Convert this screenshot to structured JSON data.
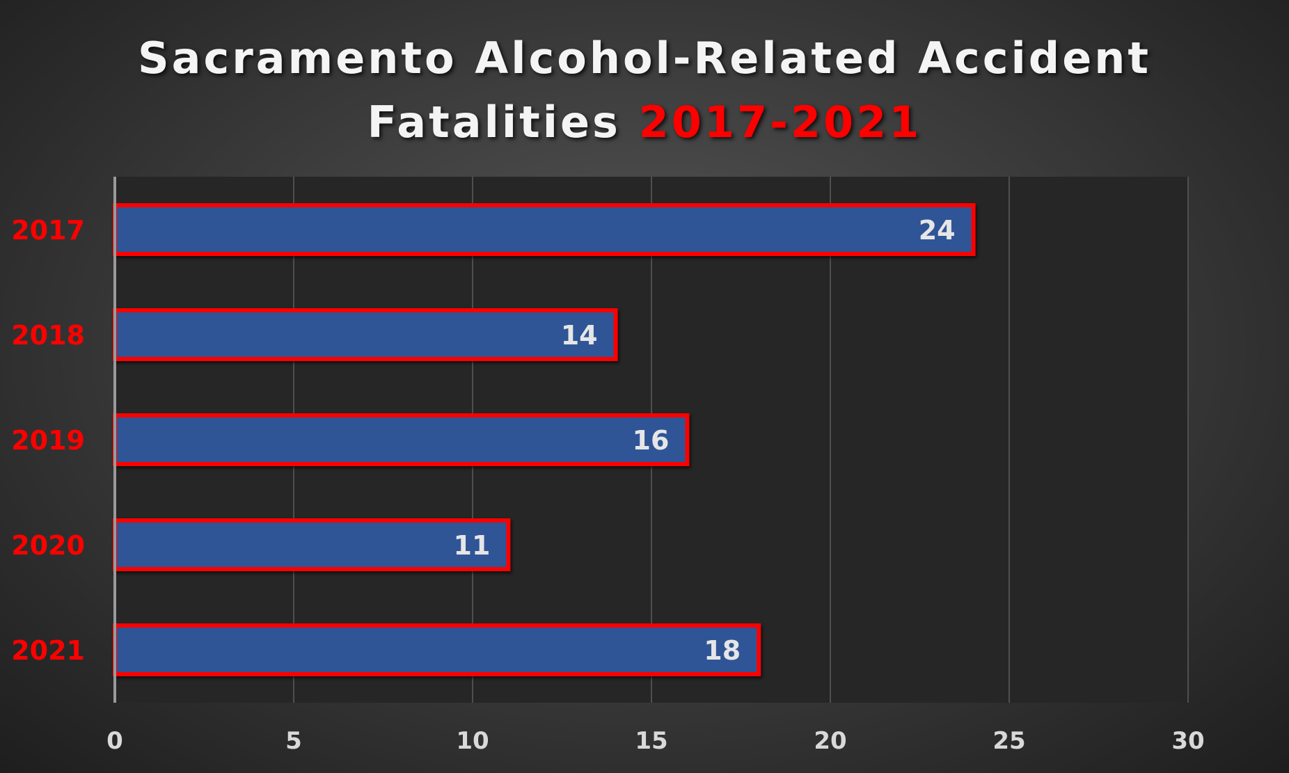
{
  "chart_data": {
    "type": "bar",
    "orientation": "horizontal",
    "title_main": "Sacramento Alcohol-Related Accident Fatalities",
    "title_line1": "Sacramento Alcohol-Related Accident",
    "title_line2": "Fatalities",
    "title_highlight": "2017-2021",
    "categories": [
      "2017",
      "2018",
      "2019",
      "2020",
      "2021"
    ],
    "values": [
      24,
      14,
      16,
      11,
      18
    ],
    "xlim": [
      0,
      30
    ],
    "xticks": [
      0,
      5,
      10,
      15,
      20,
      25,
      30
    ],
    "grid": true,
    "data_labels": true,
    "colors": {
      "bar_fill": "#2f5597",
      "bar_border": "#ff0000",
      "plot_background": "#262626",
      "gridline": "#4f4f4f",
      "category_label": "#ff0000",
      "tick_label": "#d9d9d9",
      "title": "#f4f4f4",
      "title_highlight": "#ff0000"
    }
  }
}
